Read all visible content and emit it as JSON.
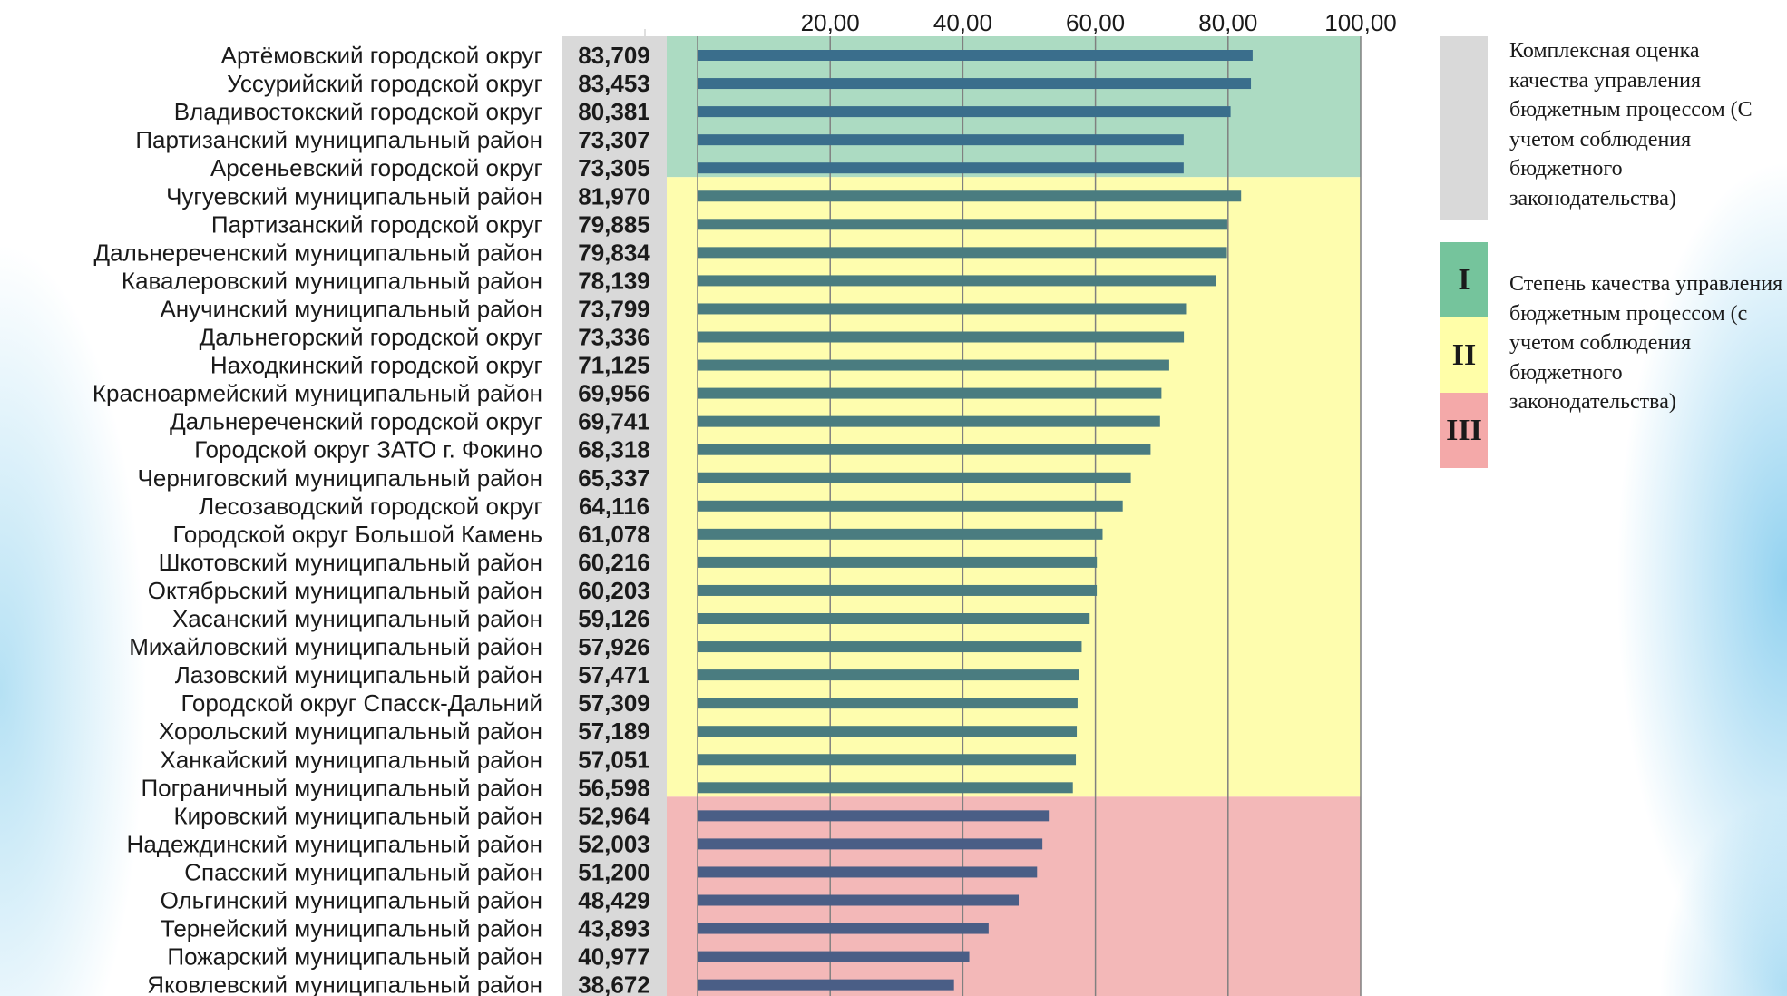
{
  "chart_data": {
    "type": "bar",
    "orientation": "horizontal",
    "title": "",
    "xlabel": "",
    "ylabel": "",
    "x_ticks": [
      "20,00",
      "40,00",
      "60,00",
      "80,00",
      "100,00"
    ],
    "xlim": [
      0,
      100
    ],
    "grid": true,
    "categories": [
      "Артёмовский городской округ",
      "Уссурийский городской округ",
      "Владивостокский городской округ",
      "Партизанский муниципальный район",
      "Арсеньевский городской округ",
      "Чугуевский муниципальный район",
      "Партизанский городской округ",
      "Дальнереченский муниципальный район",
      "Кавалеровский муниципальный район",
      "Анучинский муниципальный район",
      "Дальнегорский городской округ",
      "Находкинский городской округ",
      "Красноармейский муниципальный район",
      "Дальнереченский городской округ",
      "Городской округ ЗАТО г. Фокино",
      "Черниговский муниципальный район",
      "Лесозаводский городской округ",
      "Городской округ Большой Камень",
      "Шкотовский муниципальный район",
      "Октябрьский муниципальный район",
      "Хасанский муниципальный район",
      "Михайловский муниципальный район",
      "Лазовский муниципальный район",
      "Городской округ Спасск-Дальний",
      "Хорольский муниципальный район",
      "Ханкайский муниципальный район",
      "Пограничный муниципальный район",
      "Кировский муниципальный район",
      "Надеждинский муниципальный район",
      "Спасский муниципальный район",
      "Ольгинский муниципальный район",
      "Тернейский муниципальный район",
      "Пожарский муниципальный район",
      "Яковлевский муниципальный район"
    ],
    "values": [
      83.709,
      83.453,
      80.381,
      73.307,
      73.305,
      81.97,
      79.885,
      79.834,
      78.139,
      73.799,
      73.336,
      71.125,
      69.956,
      69.741,
      68.318,
      65.337,
      64.116,
      61.078,
      60.216,
      60.203,
      59.126,
      57.926,
      57.471,
      57.309,
      57.189,
      57.051,
      56.598,
      52.964,
      52.003,
      51.2,
      48.429,
      43.893,
      40.977,
      38.672
    ],
    "value_labels": [
      "83,709",
      "83,453",
      "80,381",
      "73,307",
      "73,305",
      "81,970",
      "79,885",
      "79,834",
      "78,139",
      "73,799",
      "73,336",
      "71,125",
      "69,956",
      "69,741",
      "68,318",
      "65,337",
      "64,116",
      "61,078",
      "60,216",
      "60,203",
      "59,126",
      "57,926",
      "57,471",
      "57,309",
      "57,189",
      "57,051",
      "56,598",
      "52,964",
      "52,003",
      "51,200",
      "48,429",
      "43,893",
      "40,977",
      "38,672"
    ],
    "zones": [
      {
        "name": "I",
        "count": 5,
        "color": "#acdbc2",
        "bar_color": "#3a6e8c"
      },
      {
        "name": "II",
        "count": 22,
        "color": "#fefdae",
        "bar_color": "#4a7c80"
      },
      {
        "name": "III",
        "count": 7,
        "color": "#f3b8b8",
        "bar_color": "#4a5e86"
      }
    ]
  },
  "colors": {
    "value_column": "#d9d9d9",
    "gridline": "#808080",
    "legend_grey": "#d9d9d9",
    "zone_I": "#75c49c",
    "zone_II": "#fffea8",
    "zone_III": "#f4a9a9"
  },
  "legend": {
    "assessment_text": "Комплексная оценка качества управления бюджетным процессом (С учетом соблюдения бюджетного законодательства)",
    "degree_text": "Степень качества управления бюджетным процессом (с учетом соблюдения бюджетного законодательства)",
    "zone_labels": [
      "I",
      "II",
      "III"
    ]
  }
}
